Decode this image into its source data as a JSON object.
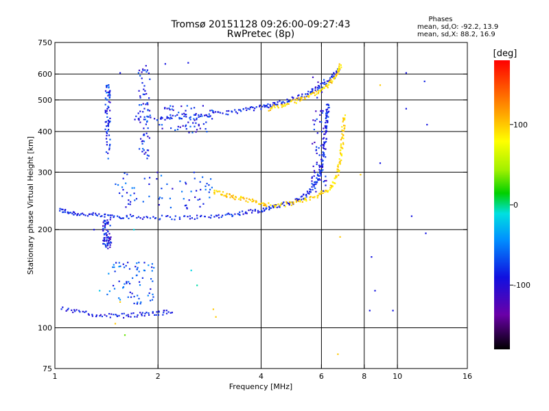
{
  "chart_data": {
    "type": "scatter",
    "title": "Tromsø 20151128 09:26:00-09:27:43",
    "subtitle": "RwPretec (8p)",
    "xlabel": "Frequency [MHz]",
    "ylabel": "Stationary phase Virtual Height [km]",
    "x_scale": "log",
    "y_scale": "log",
    "xlim": [
      1,
      16
    ],
    "ylim": [
      75,
      750
    ],
    "x_ticks": [
      1,
      2,
      4,
      6,
      8,
      10,
      16
    ],
    "x_tick_labels": [
      "1",
      "2",
      "4",
      "6",
      "8",
      "10",
      "16"
    ],
    "y_ticks": [
      75,
      100,
      200,
      300,
      400,
      500,
      600,
      750
    ],
    "y_tick_labels": [
      "75",
      "100",
      "200",
      "300",
      "400",
      "500",
      "600",
      "750"
    ],
    "grid_x": [
      2,
      4,
      6,
      8,
      10
    ],
    "grid_y": [
      100,
      200,
      300,
      400,
      500,
      600
    ],
    "colorbar": {
      "label": "[deg]",
      "ticks": [
        100,
        0,
        -100
      ],
      "tick_labels": [
        "100",
        "0",
        "-100"
      ],
      "range": [
        -180,
        180
      ]
    },
    "stats": {
      "heading": "Phases",
      "line_o": "mean, sd,O: -92.2, 13.9",
      "line_x": "mean, sd,X:  88.2, 16.9"
    },
    "series": [
      {
        "type": "line",
        "phase": -95,
        "points": [
          [
            1.03,
            230
          ],
          [
            1.1,
            226
          ],
          [
            1.2,
            223
          ],
          [
            1.35,
            221
          ],
          [
            1.5,
            220
          ],
          [
            1.7,
            219
          ],
          [
            2.0,
            218
          ],
          [
            2.4,
            218
          ],
          [
            2.8,
            219
          ],
          [
            3.2,
            222
          ],
          [
            3.6,
            226
          ],
          [
            4.0,
            230
          ],
          [
            4.3,
            234
          ],
          [
            4.6,
            238
          ],
          [
            5.0,
            244
          ],
          [
            5.3,
            252
          ],
          [
            5.6,
            264
          ],
          [
            5.8,
            280
          ],
          [
            5.95,
            300
          ],
          [
            6.05,
            330
          ],
          [
            6.12,
            365
          ],
          [
            6.18,
            400
          ],
          [
            6.22,
            430
          ],
          [
            6.25,
            460
          ],
          [
            6.28,
            490
          ]
        ]
      },
      {
        "type": "line",
        "phase": 95,
        "points": [
          [
            4.3,
            236
          ],
          [
            4.8,
            240
          ],
          [
            5.3,
            246
          ],
          [
            5.8,
            254
          ],
          [
            6.2,
            262
          ],
          [
            6.5,
            276
          ],
          [
            6.7,
            300
          ],
          [
            6.82,
            330
          ],
          [
            6.9,
            370
          ],
          [
            6.95,
            410
          ],
          [
            6.98,
            450
          ]
        ]
      },
      {
        "type": "line",
        "phase": -95,
        "points": [
          [
            1.7,
            440
          ],
          [
            2.0,
            440
          ],
          [
            2.4,
            445
          ],
          [
            2.8,
            450
          ],
          [
            3.2,
            458
          ],
          [
            3.6,
            466
          ],
          [
            4.0,
            475
          ],
          [
            4.3,
            482
          ],
          [
            4.6,
            492
          ],
          [
            5.0,
            505
          ],
          [
            5.4,
            520
          ],
          [
            5.8,
            540
          ],
          [
            6.2,
            565
          ],
          [
            6.5,
            590
          ],
          [
            6.75,
            630
          ]
        ]
      },
      {
        "type": "line",
        "phase": 95,
        "points": [
          [
            4.2,
            470
          ],
          [
            4.6,
            480
          ],
          [
            5.0,
            495
          ],
          [
            5.4,
            510
          ],
          [
            5.8,
            528
          ],
          [
            6.2,
            550
          ],
          [
            6.5,
            575
          ],
          [
            6.7,
            610
          ],
          [
            6.85,
            650
          ]
        ]
      },
      {
        "type": "line",
        "phase": -100,
        "points": [
          [
            1.05,
            115
          ],
          [
            1.2,
            111
          ],
          [
            1.4,
            109
          ],
          [
            1.6,
            109
          ],
          [
            1.8,
            110
          ],
          [
            2.0,
            111
          ],
          [
            2.2,
            112
          ]
        ]
      },
      {
        "type": "line",
        "phase": 100,
        "points": [
          [
            2.9,
            262
          ],
          [
            3.1,
            258
          ],
          [
            3.3,
            252
          ],
          [
            3.6,
            247
          ],
          [
            3.9,
            242
          ],
          [
            4.2,
            238
          ]
        ]
      },
      {
        "type": "cluster",
        "phase": -90,
        "x": [
          1.4,
          1.45
        ],
        "y": [
          330,
          560
        ]
      },
      {
        "type": "cluster",
        "phase": -80,
        "x": [
          1.42,
          1.95
        ],
        "y": [
          118,
          160
        ]
      },
      {
        "type": "cluster",
        "phase": -95,
        "x": [
          1.75,
          1.9
        ],
        "y": [
          330,
          640
        ]
      },
      {
        "type": "cluster",
        "phase": -100,
        "x": [
          1.38,
          1.46
        ],
        "y": [
          175,
          215
        ]
      },
      {
        "type": "cluster",
        "phase": -90,
        "x": [
          1.5,
          2.9
        ],
        "y": [
          232,
          300
        ]
      },
      {
        "type": "cluster",
        "phase": -95,
        "x": [
          2.0,
          2.9
        ],
        "y": [
          395,
          480
        ]
      },
      {
        "type": "cluster",
        "phase": -100,
        "x": [
          5.6,
          6.2
        ],
        "y": [
          260,
          600
        ]
      }
    ],
    "scattered_points": [
      [
        10.6,
        605,
        -100
      ],
      [
        12.0,
        570,
        -95
      ],
      [
        12.2,
        420,
        -100
      ],
      [
        10.6,
        470,
        -100
      ],
      [
        8.9,
        320,
        -100
      ],
      [
        11.0,
        220,
        -100
      ],
      [
        12.1,
        195,
        -100
      ],
      [
        8.4,
        165,
        -100
      ],
      [
        8.6,
        130,
        -100
      ],
      [
        9.7,
        113,
        -100
      ],
      [
        8.3,
        113,
        -100
      ],
      [
        6.7,
        83,
        100
      ],
      [
        8.9,
        555,
        100
      ],
      [
        6.8,
        190,
        100
      ],
      [
        7.8,
        295,
        100
      ],
      [
        2.45,
        650,
        -100
      ],
      [
        2.1,
        645,
        -100
      ],
      [
        1.55,
        605,
        -100
      ],
      [
        1.55,
        120,
        100
      ],
      [
        1.6,
        95,
        30
      ],
      [
        1.5,
        103,
        100
      ],
      [
        2.5,
        150,
        -20
      ],
      [
        2.9,
        114,
        100
      ],
      [
        2.95,
        108,
        100
      ],
      [
        1.35,
        130,
        -30
      ],
      [
        2.6,
        135,
        -10
      ],
      [
        1.3,
        200,
        -100
      ],
      [
        1.7,
        200,
        -20
      ]
    ]
  }
}
